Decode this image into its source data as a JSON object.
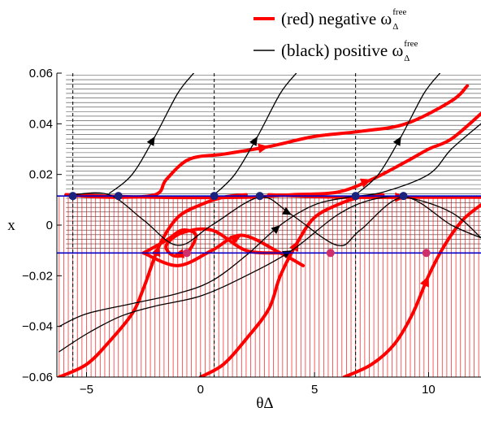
{
  "chart_data": {
    "type": "line",
    "title": "",
    "xlabel": "θΔ",
    "ylabel": "x",
    "xlim": [
      -6.3,
      12.3
    ],
    "ylim": [
      -0.06,
      0.06
    ],
    "xticks": [
      -5,
      0,
      5,
      10
    ],
    "xtick_labels": [
      "−5",
      "0",
      "5",
      "10"
    ],
    "yticks": [
      0.06,
      0.04,
      0.02,
      0,
      -0.02,
      -0.04,
      -0.06
    ],
    "ytick_labels": [
      "0.06",
      "0.04",
      "0.02",
      "0",
      "−0.02",
      "−0.04",
      "−0.06"
    ],
    "grid": false,
    "legend_position": "top-right, above plot",
    "legend": [
      {
        "label": "(red) negative ω",
        "sup": "free",
        "sub": "Δ",
        "color": "#ff0000"
      },
      {
        "label": "(black) positive ω",
        "sup": "free",
        "sub": "Δ",
        "color": "#000000"
      }
    ],
    "colors": {
      "red": "#ff0000",
      "black": "#000000",
      "blue": "#0000cc",
      "dot_blue": "#1a237e",
      "dot_red": "#d0306a"
    },
    "horizontal_lines": [
      0.0115,
      -0.011
    ],
    "vertical_dashed_lines": [
      -5.6,
      0.6,
      6.8
    ],
    "dots": [
      {
        "x": -5.6,
        "y": 0.0115,
        "color": "blue"
      },
      {
        "x": -3.6,
        "y": 0.0115,
        "color": "blue"
      },
      {
        "x": 0.6,
        "y": 0.0115,
        "color": "blue"
      },
      {
        "x": 2.6,
        "y": 0.0115,
        "color": "blue"
      },
      {
        "x": 6.8,
        "y": 0.0115,
        "color": "blue"
      },
      {
        "x": 8.9,
        "y": 0.0115,
        "color": "blue"
      },
      {
        "x": -0.6,
        "y": -0.011,
        "color": "red"
      },
      {
        "x": 5.7,
        "y": -0.011,
        "color": "red"
      },
      {
        "x": 9.9,
        "y": -0.011,
        "color": "red"
      }
    ],
    "series": [
      {
        "color": "red",
        "points": [
          [
            -5.9,
            0.012
          ],
          [
            -4,
            0.011
          ],
          [
            -2,
            0.012
          ],
          [
            -1.5,
            0.018
          ],
          [
            -0.5,
            0.026
          ],
          [
            1,
            0.028
          ],
          [
            3,
            0.031
          ],
          [
            5,
            0.035
          ],
          [
            7,
            0.037
          ],
          [
            9,
            0.04
          ],
          [
            11,
            0.049
          ],
          [
            11.7,
            0.055
          ]
        ]
      },
      {
        "color": "red",
        "points": [
          [
            -5.9,
            0.012
          ],
          [
            -2,
            0.011
          ],
          [
            2,
            0.011
          ],
          [
            4,
            0.012
          ],
          [
            6,
            0.013
          ],
          [
            7.5,
            0.018
          ],
          [
            9,
            0.025
          ],
          [
            10,
            0.03
          ],
          [
            11,
            0.034
          ],
          [
            12.3,
            0.044
          ]
        ]
      },
      {
        "color": "red",
        "points": [
          [
            3,
            0.012
          ],
          [
            6,
            0.011
          ],
          [
            9,
            0.011
          ],
          [
            12.3,
            0.011
          ]
        ]
      },
      {
        "color": "red",
        "points": [
          [
            -6.2,
            -0.06
          ],
          [
            -5,
            -0.055
          ],
          [
            -4,
            -0.046
          ],
          [
            -3,
            -0.035
          ],
          [
            -2.5,
            -0.025
          ],
          [
            -1.8,
            -0.008
          ],
          [
            -1,
            0.003
          ],
          [
            0,
            0.008
          ],
          [
            1,
            0.011
          ],
          [
            2,
            0.012
          ]
        ]
      },
      {
        "color": "red",
        "points": [
          [
            0,
            -0.06
          ],
          [
            1,
            -0.055
          ],
          [
            2,
            -0.045
          ],
          [
            3,
            -0.033
          ],
          [
            3.5,
            -0.02
          ],
          [
            4.3,
            -0.006
          ],
          [
            5,
            0.003
          ],
          [
            6,
            0.008
          ],
          [
            7,
            0.011
          ],
          [
            8,
            0.012
          ]
        ]
      },
      {
        "color": "red",
        "points": [
          [
            6.3,
            -0.06
          ],
          [
            7.5,
            -0.055
          ],
          [
            8.5,
            -0.047
          ],
          [
            9.3,
            -0.035
          ],
          [
            10,
            -0.02
          ],
          [
            10.7,
            -0.008
          ],
          [
            11.5,
            0.002
          ],
          [
            12.3,
            0.008
          ]
        ]
      },
      {
        "color": "red",
        "points": [
          [
            -2.5,
            -0.011
          ],
          [
            -1,
            -0.016
          ],
          [
            0.5,
            -0.01
          ],
          [
            1.8,
            -0.004
          ],
          [
            3.5,
            -0.011
          ],
          [
            4.5,
            -0.016
          ]
        ]
      },
      {
        "color": "red",
        "points": [
          [
            -2.5,
            -0.011
          ],
          [
            -1.5,
            -0.006
          ],
          [
            -0.8,
            -0.002
          ],
          [
            -0.2,
            -0.004
          ],
          [
            -0.6,
            -0.011
          ],
          [
            -1.2,
            -0.012
          ],
          [
            -1.5,
            -0.008
          ],
          [
            -0.8,
            -0.003
          ],
          [
            0.5,
            -0.002
          ],
          [
            2,
            -0.01
          ],
          [
            3.5,
            -0.011
          ]
        ]
      },
      {
        "color": "black",
        "points": [
          [
            -4,
            0.0125
          ],
          [
            -3,
            0.02
          ],
          [
            -2,
            0.035
          ],
          [
            -1,
            0.052
          ],
          [
            -0.3,
            0.06
          ]
        ]
      },
      {
        "color": "black",
        "points": [
          [
            0.6,
            0.012
          ],
          [
            1.5,
            0.02
          ],
          [
            2.5,
            0.035
          ],
          [
            3.5,
            0.052
          ],
          [
            4.2,
            0.06
          ]
        ]
      },
      {
        "color": "black",
        "points": [
          [
            6.8,
            0.012
          ],
          [
            7.8,
            0.02
          ],
          [
            8.8,
            0.035
          ],
          [
            9.8,
            0.052
          ],
          [
            10.5,
            0.06
          ]
        ]
      },
      {
        "color": "black",
        "points": [
          [
            -6.2,
            -0.05
          ],
          [
            -5,
            -0.043
          ],
          [
            -3.5,
            -0.036
          ],
          [
            -2,
            -0.032
          ],
          [
            0,
            -0.028
          ],
          [
            2,
            -0.02
          ],
          [
            4,
            -0.01
          ],
          [
            6,
            0.004
          ],
          [
            7.5,
            0.01
          ],
          [
            9,
            0.011
          ],
          [
            11,
            0.005
          ],
          [
            12.3,
            -0.005
          ]
        ]
      },
      {
        "color": "black",
        "points": [
          [
            -6.2,
            -0.04
          ],
          [
            -5,
            -0.035
          ],
          [
            -3,
            -0.031
          ],
          [
            -1,
            -0.027
          ],
          [
            0.5,
            -0.022
          ],
          [
            2,
            -0.012
          ],
          [
            3.5,
            0.0
          ],
          [
            5,
            0.008
          ],
          [
            6.5,
            0.011
          ],
          [
            8,
            0.013
          ],
          [
            10,
            0.02
          ],
          [
            11,
            0.03
          ],
          [
            12.3,
            0.04
          ]
        ]
      },
      {
        "color": "black",
        "points": [
          [
            -5.6,
            0.012
          ],
          [
            -4,
            0.012
          ],
          [
            -2.5,
            0.002
          ],
          [
            -1,
            -0.008
          ],
          [
            0.5,
            0.0
          ],
          [
            2.6,
            0.011
          ],
          [
            4,
            0.004
          ],
          [
            6,
            -0.008
          ],
          [
            7,
            -0.002
          ],
          [
            8.9,
            0.011
          ],
          [
            11,
            0.0
          ],
          [
            12.3,
            -0.005
          ]
        ]
      }
    ],
    "hatch_regions": [
      {
        "color": "black",
        "direction": "horizontal",
        "x_from": -5.9,
        "x_to": 12.3,
        "y_from": -0.011,
        "y_to": 0.06
      },
      {
        "color": "red",
        "direction": "vertical",
        "x_from": -6.2,
        "x_to": 12.3,
        "y_from": -0.06,
        "y_to": 0.0115
      }
    ]
  }
}
